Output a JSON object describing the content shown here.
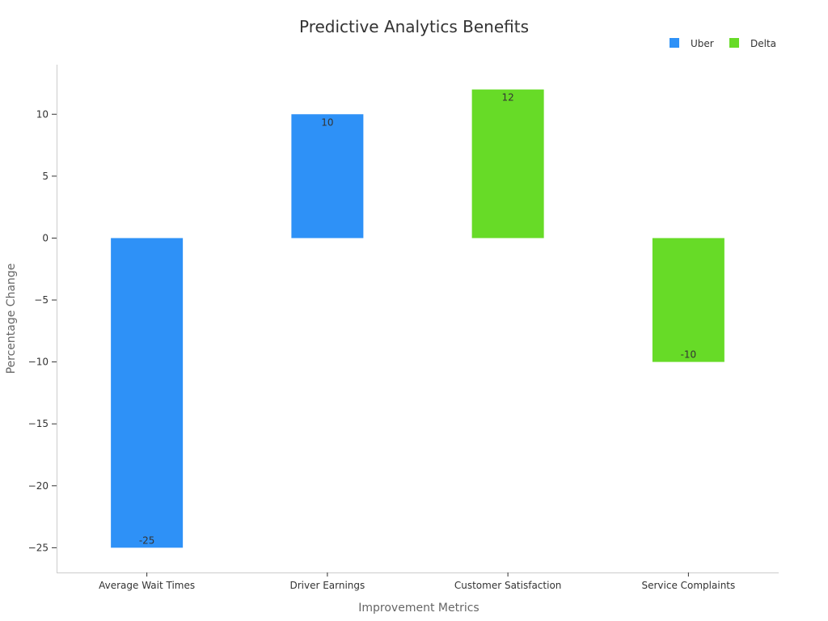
{
  "chart_data": {
    "type": "bar",
    "title": "Predictive Analytics Benefits",
    "xlabel": "Improvement Metrics",
    "ylabel": "Percentage Change",
    "categories": [
      "Average Wait Times",
      "Driver Earnings",
      "Customer Satisfaction",
      "Service Complaints"
    ],
    "series": [
      {
        "name": "Uber",
        "color": "#2E91F7",
        "values": [
          -25,
          10,
          null,
          null
        ]
      },
      {
        "name": "Delta",
        "color": "#67DB27",
        "values": [
          null,
          null,
          12,
          -10
        ]
      }
    ],
    "data_labels": [
      "-25",
      "10",
      "12",
      "-10"
    ],
    "ylim": [
      -27,
      14
    ],
    "yticks": [
      10,
      5,
      0,
      -5,
      -10,
      -15,
      -20,
      -25
    ],
    "ytick_labels": [
      "10",
      "5",
      "0",
      "−5",
      "−10",
      "−15",
      "−20",
      "−25"
    ],
    "grid": false,
    "legend_position": "top-right"
  }
}
